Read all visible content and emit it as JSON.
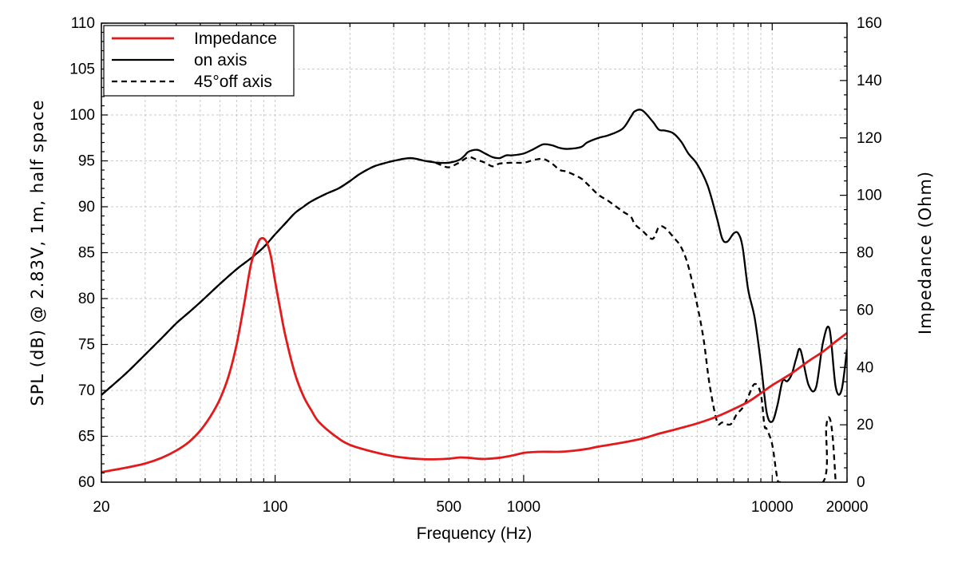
{
  "chart_data": {
    "type": "line",
    "xlabel": "Frequency (Hz)",
    "ylabel": "SPL (dB) @ 2.83V, 1m, half space",
    "y2label": "Impedance (Ohm)",
    "xscale": "log",
    "xlim": [
      20,
      20000
    ],
    "ylim": [
      60,
      110
    ],
    "y2lim": [
      0,
      160
    ],
    "x_tick_labels": [
      {
        "value": 20,
        "label": "20"
      },
      {
        "value": 100,
        "label": "100"
      },
      {
        "value": 500,
        "label": "500"
      },
      {
        "value": 1000,
        "label": "1000"
      },
      {
        "value": 10000,
        "label": "10000"
      },
      {
        "value": 20000,
        "label": "20000"
      }
    ],
    "y_tick_labels": [
      "60",
      "65",
      "70",
      "75",
      "80",
      "85",
      "90",
      "95",
      "100",
      "105",
      "110"
    ],
    "y2_tick_labels": [
      "0",
      "20",
      "40",
      "60",
      "80",
      "100",
      "120",
      "140",
      "160"
    ],
    "grid": true,
    "legend_position": "top-left",
    "series": [
      {
        "name": "Impedance",
        "axis": "right",
        "color": "#e31a1c",
        "style": "solid",
        "x": [
          20,
          25,
          30,
          35,
          40,
          45,
          50,
          55,
          60,
          65,
          70,
          75,
          80,
          85,
          88,
          92,
          96,
          100,
          105,
          110,
          120,
          130,
          140,
          150,
          175,
          200,
          250,
          300,
          350,
          400,
          450,
          500,
          550,
          600,
          650,
          700,
          800,
          900,
          1000,
          1100,
          1200,
          1400,
          1600,
          1800,
          2000,
          2500,
          3000,
          3500,
          4000,
          5000,
          6000,
          7000,
          8000,
          9000,
          10000,
          12000,
          14000,
          16000,
          18000,
          20000
        ],
        "values": [
          3.5,
          5,
          6.5,
          8.5,
          11,
          14,
          18,
          23,
          29,
          37,
          48,
          62,
          76,
          83,
          85,
          84,
          79,
          70,
          60,
          51,
          38,
          30,
          25,
          21,
          16,
          13,
          10.5,
          9,
          8.3,
          8,
          8,
          8.2,
          8.6,
          8.5,
          8.2,
          8.1,
          8.5,
          9.3,
          10.2,
          10.5,
          10.6,
          10.6,
          11,
          11.6,
          12.4,
          13.8,
          15.2,
          16.9,
          18.2,
          20.5,
          22.9,
          25.5,
          28,
          31,
          33.8,
          38,
          42.2,
          45.5,
          49,
          52
        ]
      },
      {
        "name": "on axis",
        "axis": "left",
        "color": "#000000",
        "style": "solid",
        "x": [
          20,
          25,
          30,
          35,
          40,
          45,
          50,
          60,
          70,
          80,
          90,
          100,
          110,
          120,
          130,
          140,
          160,
          180,
          200,
          220,
          250,
          280,
          300,
          350,
          400,
          450,
          500,
          550,
          580,
          600,
          650,
          700,
          750,
          800,
          850,
          900,
          1000,
          1100,
          1200,
          1300,
          1400,
          1500,
          1700,
          1800,
          2000,
          2200,
          2500,
          2700,
          2800,
          3000,
          3300,
          3500,
          3700,
          4000,
          4300,
          4600,
          5000,
          5500,
          6000,
          6300,
          6600,
          7000,
          7300,
          7600,
          8000,
          8500,
          9000,
          9500,
          10000,
          10500,
          11000,
          11500,
          12000,
          12500,
          13000,
          14000,
          15000,
          16000,
          17000,
          18000,
          19000,
          20000
        ],
        "values": [
          69.5,
          71.8,
          73.9,
          75.7,
          77.3,
          78.5,
          79.6,
          81.6,
          83.2,
          84.4,
          85.6,
          87,
          88.2,
          89.3,
          90,
          90.6,
          91.4,
          92,
          92.8,
          93.6,
          94.4,
          94.8,
          95,
          95.3,
          95,
          94.8,
          94.8,
          95.1,
          95.6,
          96,
          96.2,
          95.8,
          95.4,
          95.3,
          95.6,
          95.6,
          95.8,
          96.3,
          96.8,
          96.7,
          96.4,
          96.3,
          96.5,
          97,
          97.5,
          97.8,
          98.5,
          99.8,
          100.4,
          100.5,
          99.3,
          98.4,
          98.3,
          98,
          97.1,
          95.8,
          94.6,
          92.3,
          88.7,
          86.5,
          86.2,
          87.1,
          87.1,
          85.6,
          81,
          77.9,
          73,
          67.6,
          66.6,
          68.4,
          71,
          71,
          71.8,
          73.5,
          74.4,
          70.6,
          70.3,
          75.2,
          76.7,
          70.4,
          70,
          74.5
        ]
      },
      {
        "name": "45°off axis",
        "axis": "left",
        "color": "#000000",
        "style": "dashed",
        "x": [
          20,
          25,
          30,
          35,
          40,
          45,
          50,
          60,
          70,
          80,
          90,
          100,
          110,
          120,
          130,
          140,
          160,
          180,
          200,
          220,
          250,
          280,
          300,
          350,
          400,
          430,
          470,
          500,
          550,
          600,
          650,
          700,
          750,
          800,
          900,
          1000,
          1100,
          1200,
          1300,
          1400,
          1500,
          1700,
          1800,
          2000,
          2200,
          2500,
          2700,
          2800,
          3000,
          3300,
          3500,
          3700,
          4000,
          4300,
          4600,
          5000,
          5300,
          5600,
          6000,
          6300,
          6800,
          7200,
          7600,
          8000,
          8500,
          9000,
          9300,
          9500,
          10000,
          10500,
          11000,
          16000,
          16500,
          17000,
          17500,
          18000
        ],
        "values": [
          69.5,
          71.8,
          73.9,
          75.7,
          77.3,
          78.5,
          79.6,
          81.6,
          83.2,
          84.4,
          85.6,
          87,
          88.2,
          89.3,
          90,
          90.6,
          91.4,
          92,
          92.8,
          93.6,
          94.4,
          94.8,
          95,
          95.3,
          95,
          94.9,
          94.5,
          94.3,
          94.8,
          95.4,
          95.1,
          94.8,
          94.4,
          94.7,
          94.8,
          94.8,
          95.1,
          95.2,
          94.7,
          94,
          93.8,
          93.1,
          92.5,
          91.3,
          90.6,
          89.5,
          88.9,
          88.1,
          87.4,
          86.5,
          87.8,
          87.7,
          86.7,
          85.6,
          83.5,
          79.2,
          75.5,
          70.6,
          66.6,
          66.5,
          66.3,
          67.4,
          68.1,
          69.3,
          70.7,
          69.6,
          66.2,
          65.8,
          64.1,
          60.4,
          60,
          60,
          66,
          67,
          65,
          60
        ]
      }
    ]
  }
}
